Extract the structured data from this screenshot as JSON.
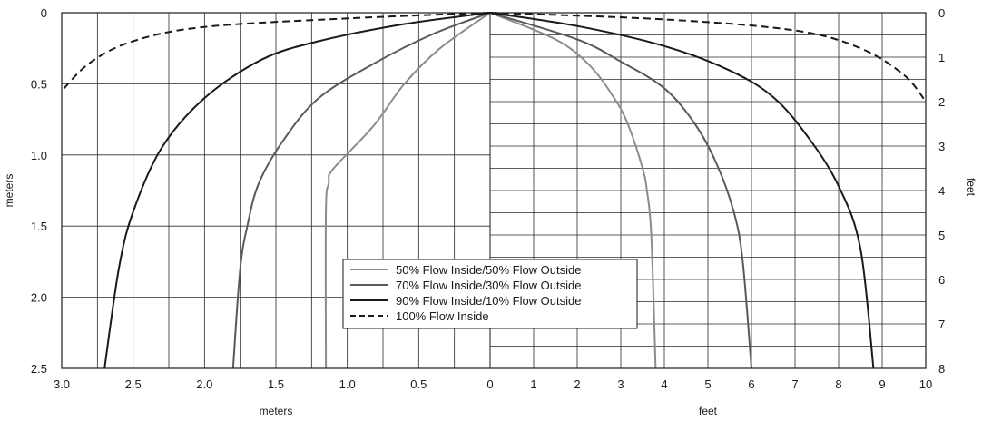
{
  "chart_data": {
    "type": "line",
    "title": "",
    "left_panel": {
      "xlabel": "meters",
      "ylabel": "meters",
      "x_ticks": [
        "3.0",
        "2.5",
        "2.0",
        "1.5",
        "1.0",
        "0.5",
        "0"
      ],
      "y_ticks": [
        "0",
        "0.5",
        "1.0",
        "1.5",
        "2.0",
        "2.5"
      ],
      "xlim": [
        3.0,
        0
      ],
      "ylim": [
        0,
        2.5
      ]
    },
    "right_panel": {
      "xlabel": "feet",
      "ylabel": "feet",
      "x_ticks": [
        "0",
        "1",
        "2",
        "3",
        "4",
        "5",
        "6",
        "7",
        "8",
        "9",
        "10"
      ],
      "y_ticks": [
        "0",
        "1",
        "2",
        "3",
        "4",
        "5",
        "6",
        "7",
        "8"
      ],
      "xlim": [
        0,
        10
      ],
      "ylim": [
        0,
        8
      ]
    },
    "grid": true,
    "legend_position": "bottom-center",
    "series": [
      {
        "name": "50% Flow Inside/50% Flow Outside",
        "color": "#8c8c8c",
        "dash": "solid",
        "left_points": [
          [
            0,
            0
          ],
          [
            0.35,
            0.25
          ],
          [
            0.6,
            0.5
          ],
          [
            0.82,
            0.8
          ],
          [
            1.1,
            1.1
          ],
          [
            1.13,
            1.2
          ],
          [
            1.15,
            1.4
          ],
          [
            1.15,
            2.5
          ]
        ],
        "right_points": [
          [
            0,
            0
          ],
          [
            1.5,
            0.6
          ],
          [
            2.3,
            1.2
          ],
          [
            2.9,
            2.0
          ],
          [
            3.2,
            2.6
          ],
          [
            3.5,
            3.5
          ],
          [
            3.6,
            4.0
          ],
          [
            3.7,
            5.0
          ],
          [
            3.8,
            8.0
          ]
        ]
      },
      {
        "name": "70% Flow Inside/30% Flow Outside",
        "color": "#5a5a5a",
        "dash": "solid",
        "left_points": [
          [
            0,
            0
          ],
          [
            0.4,
            0.15
          ],
          [
            0.8,
            0.35
          ],
          [
            1.2,
            0.6
          ],
          [
            1.45,
            0.9
          ],
          [
            1.62,
            1.2
          ],
          [
            1.7,
            1.5
          ],
          [
            1.75,
            1.8
          ],
          [
            1.8,
            2.5
          ]
        ],
        "right_points": [
          [
            0,
            0
          ],
          [
            2.0,
            0.6
          ],
          [
            3.0,
            1.1
          ],
          [
            4.0,
            1.7
          ],
          [
            4.7,
            2.5
          ],
          [
            5.2,
            3.4
          ],
          [
            5.6,
            4.5
          ],
          [
            5.8,
            5.6
          ],
          [
            6.0,
            8.0
          ]
        ]
      },
      {
        "name": "90% Flow Inside/10% Flow Outside",
        "color": "#1a1a1a",
        "dash": "solid",
        "left_points": [
          [
            0,
            0
          ],
          [
            0.6,
            0.08
          ],
          [
            1.2,
            0.2
          ],
          [
            1.6,
            0.33
          ],
          [
            2.0,
            0.6
          ],
          [
            2.3,
            0.95
          ],
          [
            2.5,
            1.4
          ],
          [
            2.6,
            1.8
          ],
          [
            2.7,
            2.5
          ]
        ],
        "right_points": [
          [
            0,
            0
          ],
          [
            2.0,
            0.3
          ],
          [
            4.0,
            0.75
          ],
          [
            5.5,
            1.3
          ],
          [
            6.5,
            1.9
          ],
          [
            7.3,
            2.8
          ],
          [
            8.0,
            3.9
          ],
          [
            8.5,
            5.3
          ],
          [
            8.8,
            8.0
          ]
        ]
      },
      {
        "name": "100% Flow Inside",
        "color": "#1a1a1a",
        "dash": "dashed",
        "left_points": [
          [
            0,
            0
          ],
          [
            1.0,
            0.04
          ],
          [
            2.0,
            0.1
          ],
          [
            2.5,
            0.2
          ],
          [
            2.8,
            0.35
          ],
          [
            3.0,
            0.55
          ]
        ],
        "right_points": [
          [
            0,
            0
          ],
          [
            4.0,
            0.15
          ],
          [
            7.0,
            0.4
          ],
          [
            8.5,
            0.8
          ],
          [
            9.5,
            1.4
          ],
          [
            10.0,
            2.0
          ]
        ]
      }
    ]
  }
}
